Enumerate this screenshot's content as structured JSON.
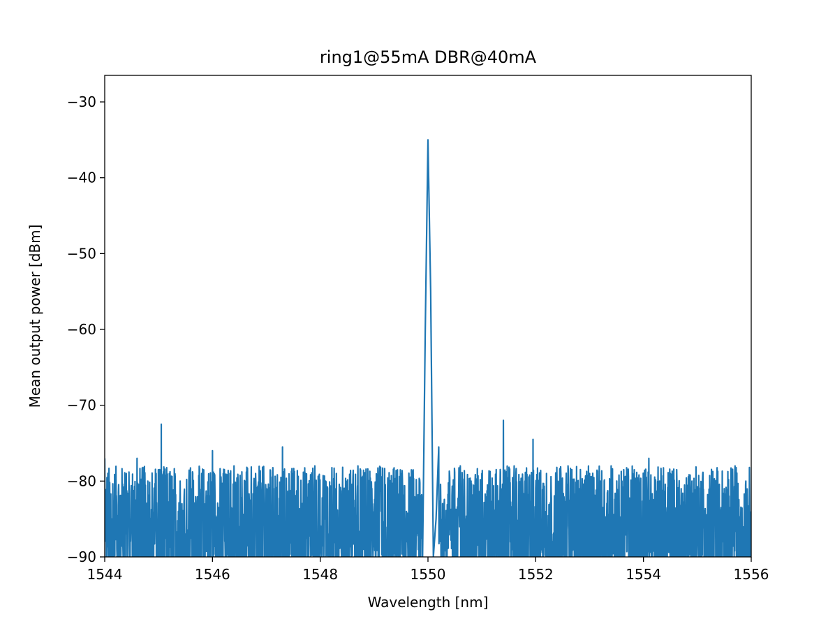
{
  "chart_data": {
    "type": "line",
    "title": "ring1@55mA DBR@40mA",
    "xlabel": "Wavelength [nm]",
    "ylabel": "Mean output power [dBm]",
    "xlim": [
      1544,
      1556
    ],
    "ylim": [
      -90,
      -26.5
    ],
    "xticks": [
      1544,
      1546,
      1548,
      1550,
      1552,
      1554,
      1556
    ],
    "xtick_labels": [
      "1544",
      "1546",
      "1548",
      "1550",
      "1552",
      "1554",
      "1556"
    ],
    "yticks": [
      -90,
      -80,
      -70,
      -60,
      -50,
      -40,
      -30
    ],
    "ytick_labels": [
      "−90",
      "−80",
      "−70",
      "−60",
      "−50",
      "−40",
      "−30"
    ],
    "grid": false,
    "line_color": "#1f77b4",
    "series": [
      {
        "noise_floor_range": [
          -90,
          -78
        ],
        "x": [
          1544.0,
          1544.1,
          1544.2,
          1544.3,
          1544.4,
          1544.5,
          1544.6,
          1544.7,
          1544.8,
          1544.9,
          1545.0,
          1545.05,
          1545.08,
          1545.1,
          1545.2,
          1545.3,
          1545.4,
          1545.5,
          1545.6,
          1545.7,
          1545.8,
          1545.9,
          1546.0,
          1546.1,
          1546.2,
          1546.3,
          1546.4,
          1546.5,
          1546.6,
          1546.7,
          1546.8,
          1546.9,
          1547.0,
          1547.1,
          1547.2,
          1547.3,
          1547.4,
          1547.5,
          1547.6,
          1547.7,
          1547.8,
          1547.9,
          1548.0,
          1548.1,
          1548.2,
          1548.3,
          1548.4,
          1548.5,
          1548.6,
          1548.7,
          1548.8,
          1548.9,
          1549.0,
          1549.1,
          1549.2,
          1549.3,
          1549.4,
          1549.5,
          1549.6,
          1549.7,
          1549.8,
          1549.9,
          1549.95,
          1550.0,
          1550.05,
          1550.1,
          1550.15,
          1550.2,
          1550.3,
          1550.4,
          1550.5,
          1550.6,
          1550.7,
          1550.8,
          1550.9,
          1551.0,
          1551.1,
          1551.2,
          1551.3,
          1551.4,
          1551.45,
          1551.5,
          1551.6,
          1551.7,
          1551.8,
          1551.9,
          1551.95,
          1552.0,
          1552.1,
          1552.2,
          1552.3,
          1552.4,
          1552.5,
          1552.6,
          1552.7,
          1552.8,
          1552.9,
          1553.0,
          1553.1,
          1553.2,
          1553.3,
          1553.4,
          1553.5,
          1553.6,
          1553.7,
          1553.8,
          1553.9,
          1554.0,
          1554.1,
          1554.2,
          1554.3,
          1554.4,
          1554.5,
          1554.6,
          1554.7,
          1554.8,
          1554.9,
          1555.0,
          1555.1,
          1555.2,
          1555.3,
          1555.4,
          1555.5,
          1555.6,
          1555.7,
          1555.8,
          1555.9,
          1556.0
        ],
        "y": [
          -77,
          -88,
          -80,
          -90,
          -79,
          -86,
          -77,
          -84,
          -80,
          -89,
          -81,
          -72.5,
          -80,
          -83,
          -79,
          -85,
          -80,
          -87,
          -81,
          -84,
          -79,
          -86,
          -76,
          -84,
          -79,
          -88,
          -78,
          -86,
          -80,
          -87,
          -79,
          -85,
          -81,
          -88,
          -80,
          -75.5,
          -84,
          -79,
          -87,
          -80,
          -86,
          -78,
          -88,
          -80,
          -85,
          -79,
          -87,
          -80,
          -86,
          -78,
          -89,
          -81,
          -83,
          -79,
          -85,
          -80,
          -86,
          -79,
          -84,
          -80,
          -86,
          -90,
          -60,
          -35,
          -55,
          -90,
          -85,
          -75.5,
          -83,
          -79,
          -87,
          -78,
          -85,
          -80,
          -86,
          -79,
          -84,
          -81,
          -87,
          -72,
          -80,
          -83,
          -78,
          -86,
          -80,
          -84,
          -74.5,
          -81,
          -85,
          -79,
          -87,
          -80,
          -84,
          -78,
          -86,
          -81,
          -88,
          -79,
          -85,
          -80,
          -87,
          -78,
          -84,
          -80,
          -86,
          -79,
          -88,
          -81,
          -77,
          -85,
          -80,
          -87,
          -79,
          -84,
          -81,
          -86,
          -80,
          -88,
          -79,
          -85,
          -80,
          -87,
          -81,
          -84,
          -78,
          -86,
          -80,
          -84
        ]
      }
    ]
  }
}
